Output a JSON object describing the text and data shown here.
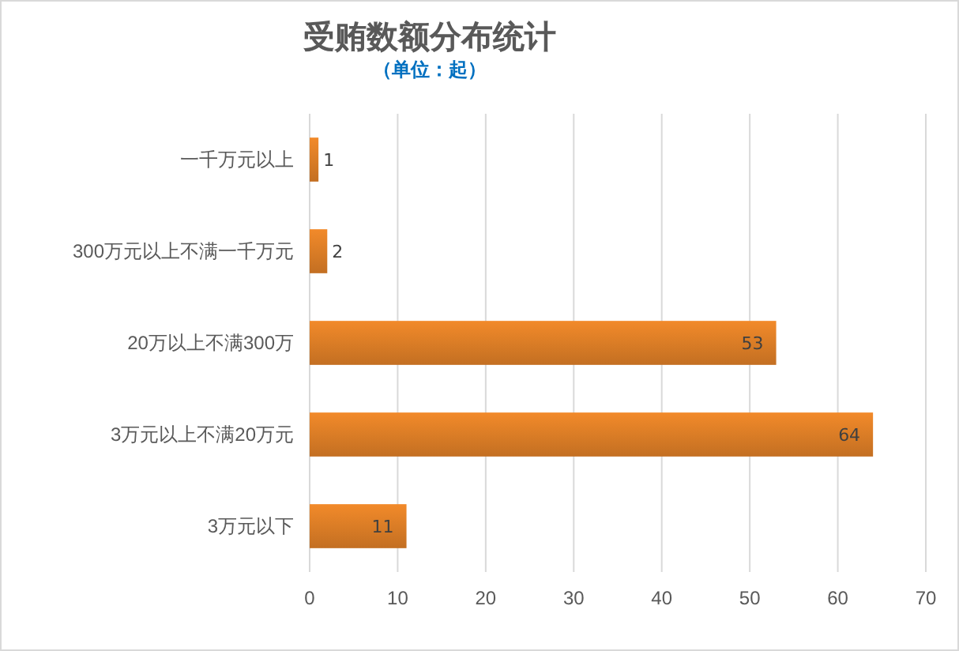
{
  "chart_data": {
    "type": "bar",
    "orientation": "horizontal",
    "title": "受贿数额分布统计",
    "subtitle": "（单位：起）",
    "categories": [
      "一千万元以上",
      "300万元以上不满一千万元",
      "20万以上不满300万",
      "3万元以上不满20万元",
      "3万元以下"
    ],
    "values": [
      1,
      2,
      53,
      64,
      11
    ],
    "color": "#f28a2a",
    "xlim": [
      0,
      70
    ],
    "xticks": [
      0,
      10,
      20,
      30,
      40,
      50,
      60,
      70
    ],
    "grid": "x",
    "data_labels": true
  }
}
